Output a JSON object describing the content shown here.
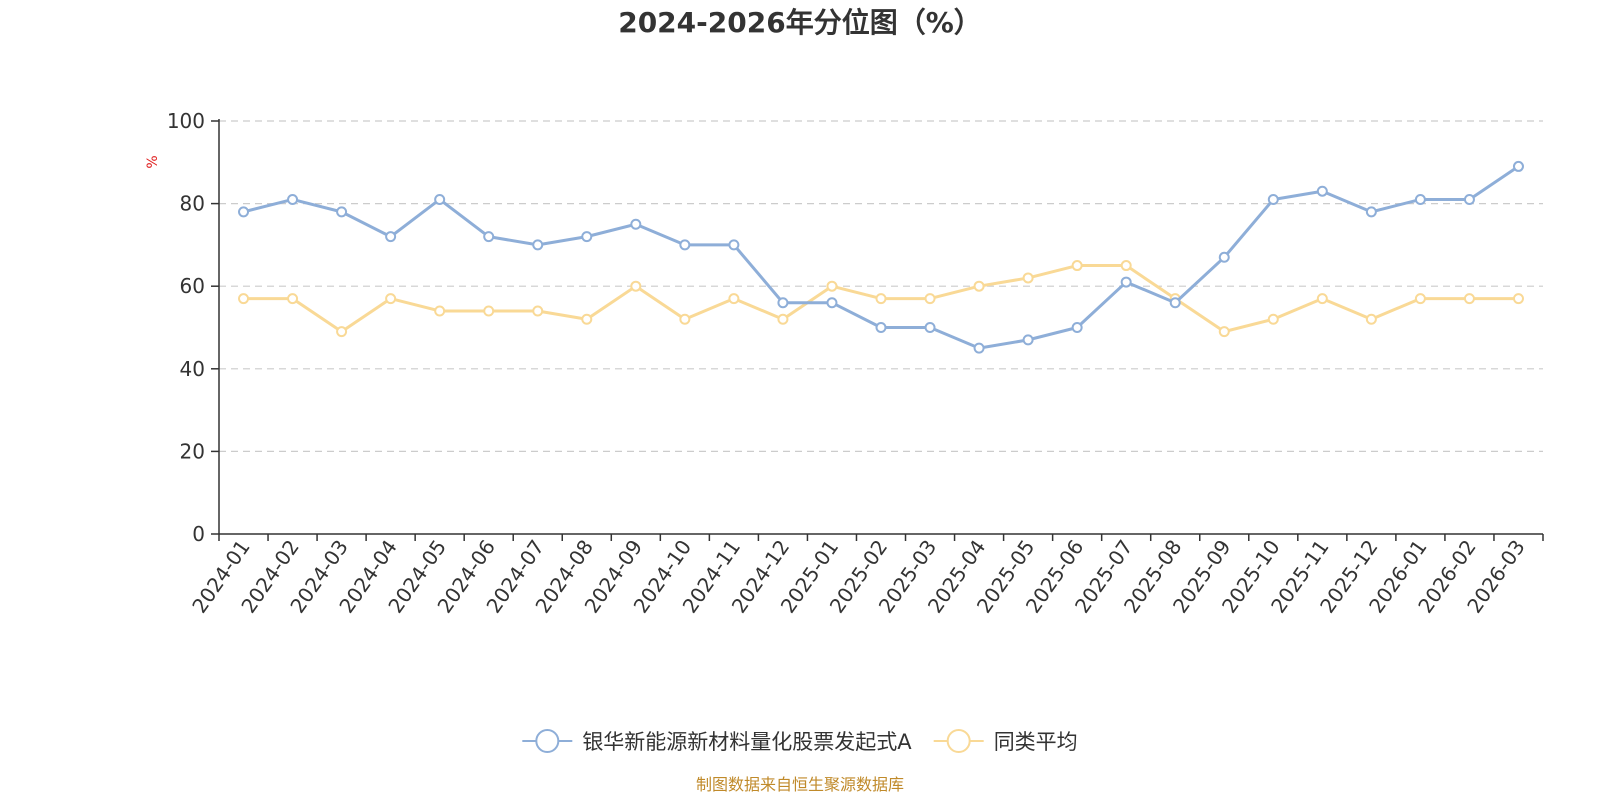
{
  "chart_data": {
    "type": "line",
    "title": "2024-2026年分位图（%）",
    "ylabel": "%",
    "ylim": [
      0,
      100
    ],
    "yticks": [
      0,
      20,
      40,
      60,
      80,
      100
    ],
    "grid": true,
    "legend_position": "bottom-center",
    "categories": [
      "2024-01",
      "2024-02",
      "2024-03",
      "2024-04",
      "2024-05",
      "2024-06",
      "2024-07",
      "2024-08",
      "2024-09",
      "2024-10",
      "2024-11",
      "2024-12",
      "2025-01",
      "2025-02",
      "2025-03",
      "2025-04",
      "2025-05",
      "2025-06",
      "2025-07",
      "2025-08",
      "2025-09",
      "2025-10",
      "2025-11",
      "2025-12",
      "2026-01",
      "2026-02",
      "2026-03"
    ],
    "series": [
      {
        "name": "银华新能源新材料量化股票发起式A",
        "color": "#8eaed8",
        "values": [
          78,
          81,
          78,
          72,
          81,
          72,
          70,
          72,
          75,
          70,
          70,
          56,
          56,
          50,
          50,
          45,
          47,
          50,
          61,
          56,
          67,
          81,
          83,
          78,
          81,
          81,
          89
        ]
      },
      {
        "name": "同类平均",
        "color": "#f9d996",
        "values": [
          57,
          57,
          49,
          57,
          54,
          54,
          54,
          52,
          60,
          52,
          57,
          52,
          60,
          57,
          57,
          60,
          62,
          65,
          65,
          57,
          49,
          52,
          57,
          52,
          57,
          57,
          57
        ]
      }
    ]
  },
  "source_note": "制图数据来自恒生聚源数据库"
}
